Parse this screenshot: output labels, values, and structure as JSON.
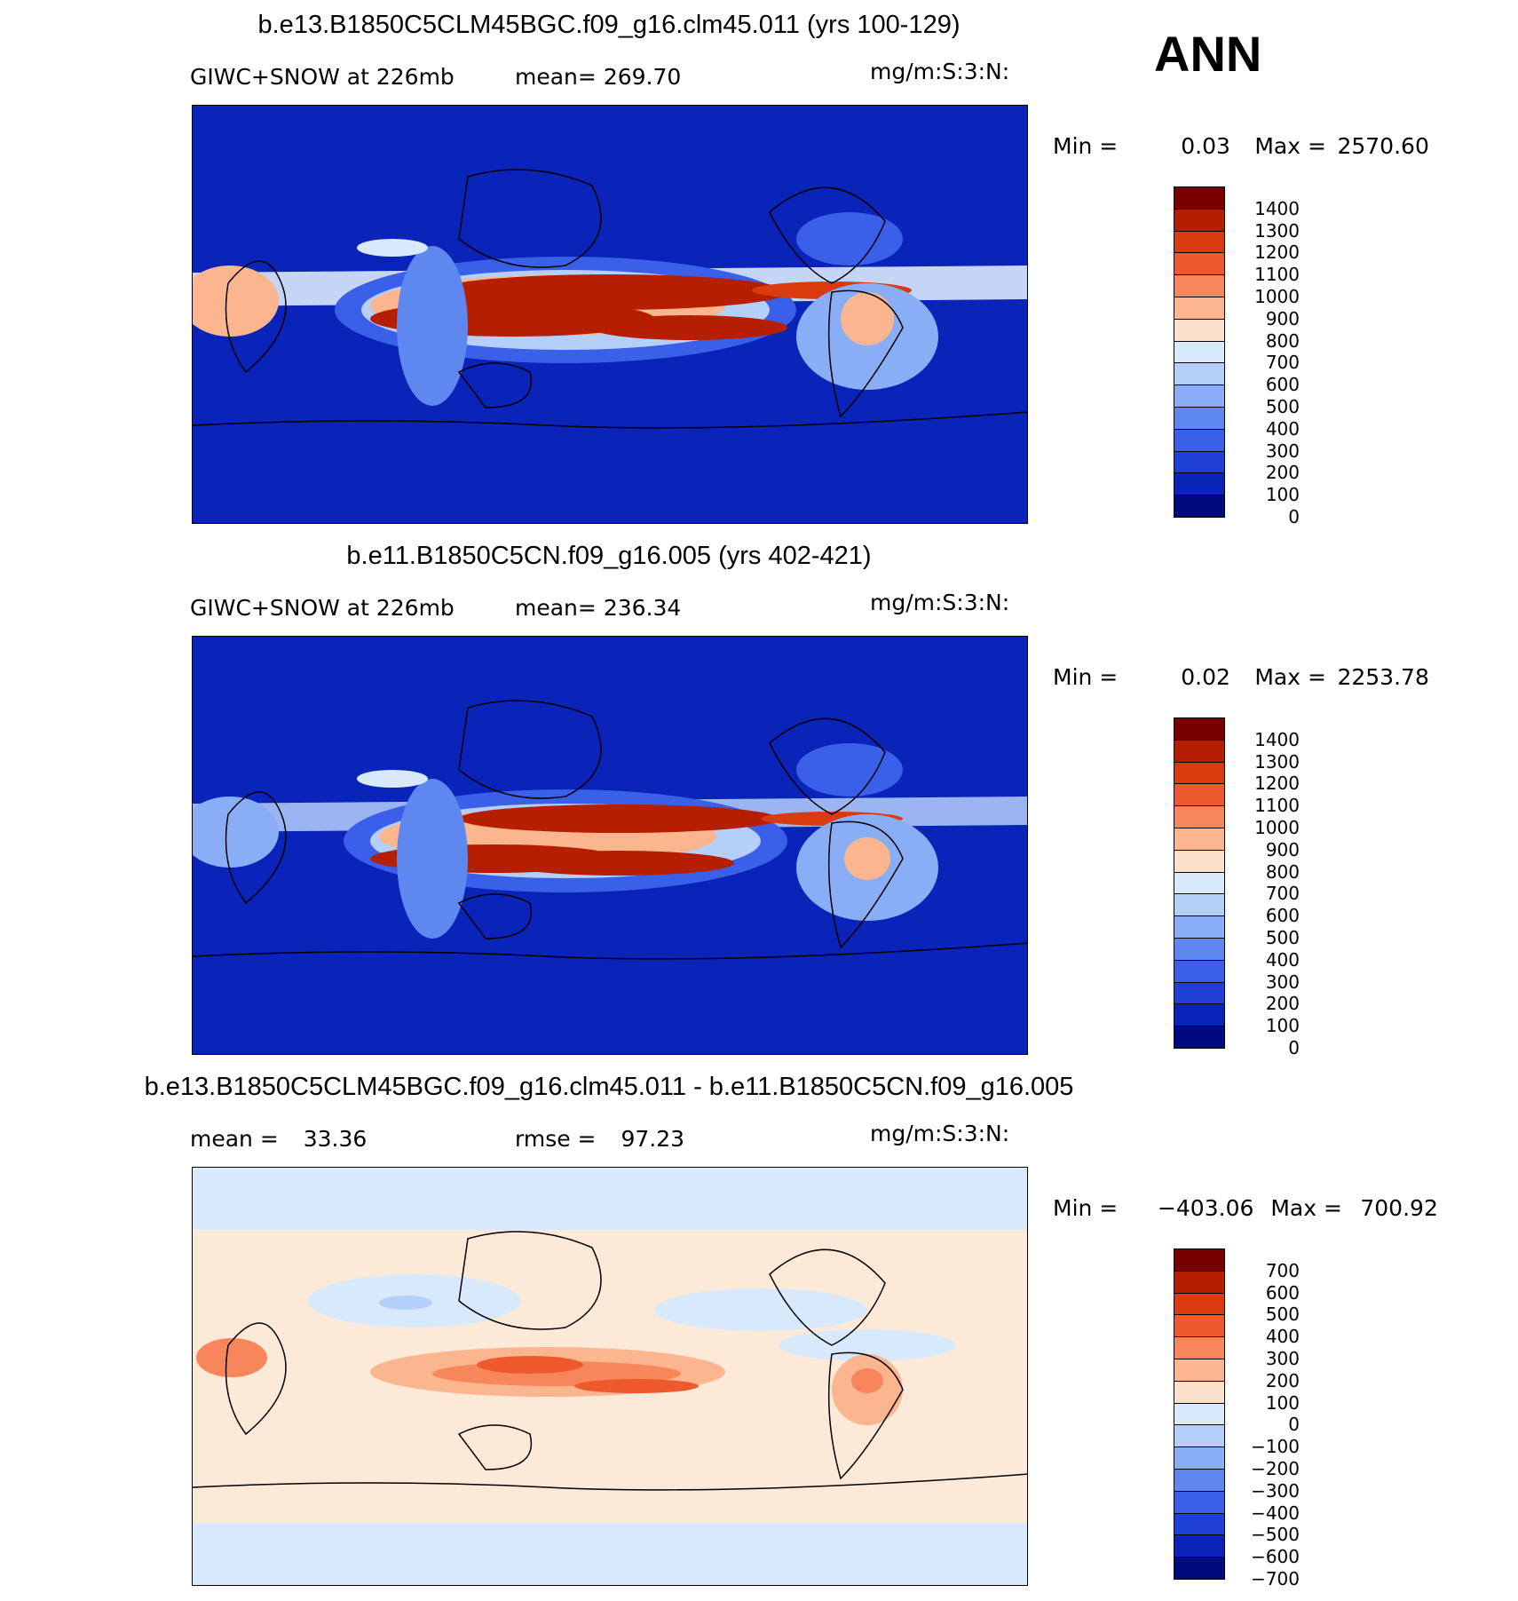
{
  "season": "ANN",
  "panels": [
    {
      "id": "top",
      "title": "b.e13.B1850C5CLM45BGC.f09_g16.clm45.011 (yrs 100-129)",
      "variable_label": "GIWC+SNOW at 226mb",
      "stat_label": "mean=",
      "stat_value": "269.70",
      "units": "mg/m:S:3:N:",
      "min_label": "Min =",
      "min_value": "0.03",
      "max_label": "Max =",
      "max_value": "2570.60",
      "colorbar_labels": [
        "1400",
        "1300",
        "1200",
        "1100",
        "1000",
        "900",
        "800",
        "700",
        "600",
        "500",
        "400",
        "300",
        "200",
        "100",
        "0"
      ],
      "colorbar_colors": [
        "#7a0000",
        "#b51f00",
        "#d93a0e",
        "#ee5a2e",
        "#f7875a",
        "#fbb58f",
        "#fde0cc",
        "#d8e9fc",
        "#b4cffa",
        "#8aaef6",
        "#5f87f0",
        "#3a5fe8",
        "#1f3fd6",
        "#0a23b8",
        "#000a80"
      ]
    },
    {
      "id": "middle",
      "title": "b.e11.B1850C5CN.f09_g16.005 (yrs 402-421)",
      "variable_label": "GIWC+SNOW at 226mb",
      "stat_label": "mean=",
      "stat_value": "236.34",
      "units": "mg/m:S:3:N:",
      "min_label": "Min =",
      "min_value": "0.02",
      "max_label": "Max =",
      "max_value": "2253.78",
      "colorbar_labels": [
        "1400",
        "1300",
        "1200",
        "1100",
        "1000",
        "900",
        "800",
        "700",
        "600",
        "500",
        "400",
        "300",
        "200",
        "100",
        "0"
      ],
      "colorbar_colors": [
        "#7a0000",
        "#b51f00",
        "#d93a0e",
        "#ee5a2e",
        "#f7875a",
        "#fbb58f",
        "#fde0cc",
        "#d8e9fc",
        "#b4cffa",
        "#8aaef6",
        "#5f87f0",
        "#3a5fe8",
        "#1f3fd6",
        "#0a23b8",
        "#000a80"
      ]
    },
    {
      "id": "difference",
      "title": "b.e13.B1850C5CLM45BGC.f09_g16.clm45.011 - b.e11.B1850C5CN.f09_g16.005",
      "variable_label": "mean =",
      "variable_value": "33.36",
      "stat_label": "rmse =",
      "stat_value": "97.23",
      "units": "mg/m:S:3:N:",
      "min_label": "Min =",
      "min_value": "−403.06",
      "max_label": "Max =",
      "max_value": "700.92",
      "colorbar_labels": [
        "700",
        "600",
        "500",
        "400",
        "300",
        "200",
        "100",
        "0",
        "−100",
        "−200",
        "−300",
        "−400",
        "−500",
        "−600",
        "−700"
      ],
      "colorbar_colors": [
        "#7a0000",
        "#b51f00",
        "#d93a0e",
        "#ee5a2e",
        "#f7875a",
        "#fbb58f",
        "#fde0cc",
        "#d8e9fc",
        "#b4cffa",
        "#8aaef6",
        "#5f87f0",
        "#3a5fe8",
        "#1f3fd6",
        "#0a23b8",
        "#000a80"
      ]
    }
  ],
  "map_colors": {
    "ocean_low": "#0a23b8",
    "coast": "#000000",
    "diff_background": "#fde9d8",
    "diff_negative": "#d8e9fc"
  }
}
